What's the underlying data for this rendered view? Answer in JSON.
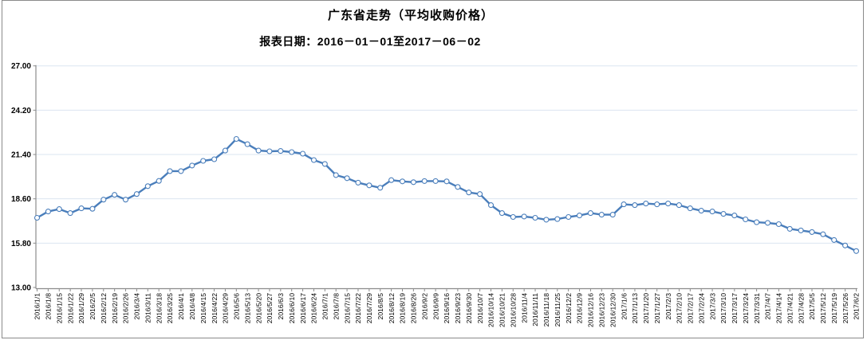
{
  "page": {
    "background": "#ffffff",
    "frame_border_color": "#8a8a8a"
  },
  "chart_data": {
    "type": "line",
    "title": "广东省走势（平均收购价格）",
    "subtitle": "报表日期：2016－01－01至2017－06－02",
    "xlabel": "",
    "ylabel": "",
    "ylim": [
      13.0,
      27.0
    ],
    "yticks": [
      "13.00",
      "15.80",
      "18.60",
      "21.40",
      "24.20",
      "27.00"
    ],
    "grid": "horizontal",
    "legend_position": "none",
    "line_color": "#4a7ebb",
    "marker": "open-circle",
    "marker_fill": "#ffffff",
    "gridline_color": "#dbe5f1",
    "axis_color": "#8c8c8c",
    "tick_label_color": "#000000",
    "x": [
      "2016/1/1",
      "2016/1/8",
      "2016/1/15",
      "2016/1/22",
      "2016/1/29",
      "2016/2/5",
      "2016/2/12",
      "2016/2/19",
      "2016/2/26",
      "2016/3/4",
      "2016/3/11",
      "2016/3/18",
      "2016/3/25",
      "2016/4/1",
      "2016/4/8",
      "2016/4/15",
      "2016/4/22",
      "2016/4/29",
      "2016/5/6",
      "2016/5/13",
      "2016/5/20",
      "2016/5/27",
      "2016/6/3",
      "2016/6/10",
      "2016/6/17",
      "2016/6/24",
      "2016/7/1",
      "2016/7/8",
      "2016/7/15",
      "2016/7/22",
      "2016/7/29",
      "2016/8/5",
      "2016/8/12",
      "2016/8/19",
      "2016/8/26",
      "2016/9/2",
      "2016/9/9",
      "2016/9/16",
      "2016/9/23",
      "2016/9/30",
      "2016/10/7",
      "2016/10/14",
      "2016/10/21",
      "2016/10/28",
      "2016/11/4",
      "2016/11/11",
      "2016/11/18",
      "2016/11/25",
      "2016/12/2",
      "2016/12/9",
      "2016/12/16",
      "2016/12/23",
      "2016/12/30",
      "2017/1/6",
      "2017/1/13",
      "2017/1/20",
      "2017/1/27",
      "2017/2/3",
      "2017/2/10",
      "2017/2/17",
      "2017/2/24",
      "2017/3/3",
      "2017/3/10",
      "2017/3/17",
      "2017/3/24",
      "2017/3/31",
      "2017/4/7",
      "2017/4/14",
      "2017/4/21",
      "2017/4/28",
      "2017/5/5",
      "2017/5/12",
      "2017/5/19",
      "2017/5/26",
      "2017/6/2"
    ],
    "series": [
      {
        "name": "平均收购价格",
        "values": [
          17.4,
          17.8,
          17.95,
          17.7,
          18.0,
          17.97,
          18.55,
          18.85,
          18.55,
          18.9,
          19.4,
          19.73,
          20.35,
          20.35,
          20.7,
          21.0,
          21.1,
          21.65,
          22.38,
          22.05,
          21.65,
          21.6,
          21.62,
          21.55,
          21.45,
          21.05,
          20.8,
          20.1,
          19.9,
          19.62,
          19.45,
          19.3,
          19.78,
          19.7,
          19.65,
          19.72,
          19.72,
          19.7,
          19.35,
          19.0,
          18.9,
          18.2,
          17.7,
          17.45,
          17.48,
          17.4,
          17.28,
          17.32,
          17.45,
          17.55,
          17.7,
          17.6,
          17.6,
          18.25,
          18.2,
          18.3,
          18.25,
          18.3,
          18.2,
          18.0,
          17.85,
          17.8,
          17.65,
          17.55,
          17.3,
          17.12,
          17.08,
          17.0,
          16.7,
          16.6,
          16.5,
          16.36,
          16.0,
          15.65,
          15.3
        ]
      }
    ]
  }
}
